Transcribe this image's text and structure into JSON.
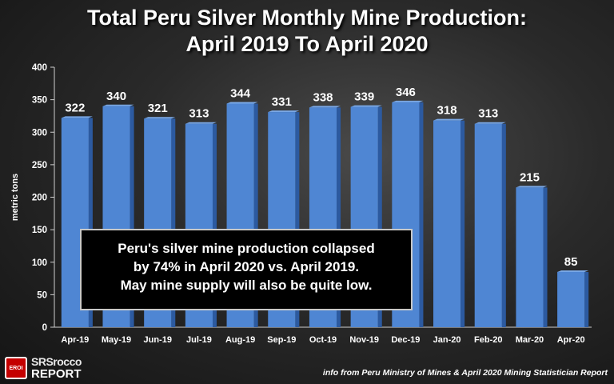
{
  "title_line1": "Total Peru Silver Monthly Mine Production:",
  "title_line2": "April 2019 To April 2020",
  "chart_data": {
    "type": "bar",
    "categories": [
      "Apr-19",
      "May-19",
      "Jun-19",
      "Jul-19",
      "Aug-19",
      "Sep-19",
      "Oct-19",
      "Nov-19",
      "Dec-19",
      "Jan-20",
      "Feb-20",
      "Mar-20",
      "Apr-20"
    ],
    "values": [
      322,
      340,
      321,
      313,
      344,
      331,
      338,
      339,
      346,
      318,
      313,
      215,
      85
    ],
    "title": "Total Peru Silver Monthly Mine Production: April 2019 To April 2020",
    "xlabel": "",
    "ylabel": "metric tons",
    "ylim": [
      0,
      400
    ],
    "yticks": [
      0,
      50,
      100,
      150,
      200,
      250,
      300,
      350,
      400
    ],
    "grid": false,
    "legend": "none",
    "bar_color": "#4f86d3",
    "data_labels": true
  },
  "callout": {
    "line1": "Peru's silver mine production collapsed",
    "line2": "by 74% in April 2020 vs. April 2019.",
    "line3": "May mine supply will also be quite low."
  },
  "logo": {
    "icon_text": "EROI",
    "line1": "SRSrocco",
    "line2": "REPORT",
    "accent": "#c40000"
  },
  "source": "info from Peru Ministry of Mines & April 2020 Mining Statistician Report"
}
